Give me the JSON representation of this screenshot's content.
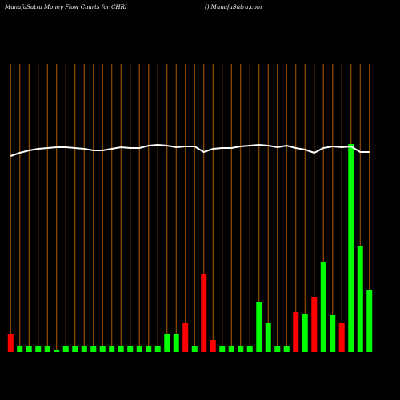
{
  "chart_data": {
    "type": "bar",
    "title": "MunafaSutra  Money Flow  Charts for CHRI",
    "subtitle": "() MunafaSutra.com",
    "ylim": [
      0,
      360
    ],
    "grid": true,
    "grid_color": "#b35a00",
    "series": [
      {
        "type": "bar",
        "values": [
          22,
          8,
          8,
          8,
          8,
          3,
          8,
          8,
          8,
          8,
          8,
          8,
          8,
          8,
          8,
          8,
          8,
          22,
          22,
          36,
          8,
          98,
          15,
          8,
          8,
          8,
          8,
          63,
          36,
          8,
          8,
          50,
          47,
          69,
          112,
          46,
          36,
          260,
          132,
          77
        ],
        "colors": [
          "#ff0000",
          "#00ff00",
          "#00ff00",
          "#00ff00",
          "#00ff00",
          "#00ff00",
          "#00ff00",
          "#00ff00",
          "#00ff00",
          "#00ff00",
          "#00ff00",
          "#00ff00",
          "#00ff00",
          "#00ff00",
          "#00ff00",
          "#00ff00",
          "#00ff00",
          "#00ff00",
          "#00ff00",
          "#ff0000",
          "#00ff00",
          "#ff0000",
          "#ff0000",
          "#00ff00",
          "#00ff00",
          "#00ff00",
          "#00ff00",
          "#00ff00",
          "#00ff00",
          "#00ff00",
          "#00ff00",
          "#ff0000",
          "#00ff00",
          "#ff0000",
          "#00ff00",
          "#00ff00",
          "#ff0000",
          "#00ff00",
          "#00ff00",
          "#00ff00"
        ]
      },
      {
        "type": "line",
        "color": "#ffffff",
        "values": [
          245,
          249,
          252,
          254,
          255,
          256,
          256,
          255,
          254,
          252,
          252,
          254,
          256,
          255,
          255,
          258,
          259,
          258,
          256,
          257,
          257,
          250,
          254,
          255,
          255,
          257,
          258,
          259,
          258,
          256,
          258,
          255,
          253,
          249,
          255,
          257,
          256,
          257,
          250,
          250
        ]
      }
    ]
  }
}
